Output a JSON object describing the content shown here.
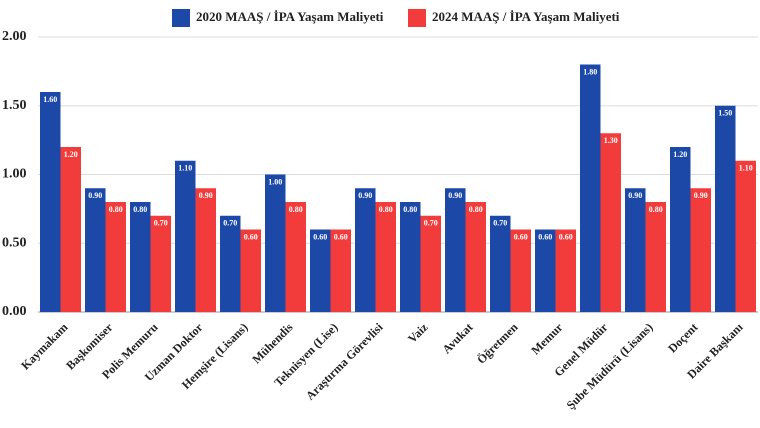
{
  "chart_data": {
    "type": "bar",
    "categories": [
      "Kaymakam",
      "Başkomiser",
      "Polis Memuru",
      "Uzman Doktor",
      "Hemşire (Lisans)",
      "Mühendis",
      "Teknisyen (Lise)",
      "Araştırma Görevlisi",
      "Vaiz",
      "Avukat",
      "Öğretmen",
      "Memur",
      "Genel Müdür",
      "Şube Müdürü (Lisans)",
      "Doçent",
      "Daire Başkanı"
    ],
    "series": [
      {
        "name": "2020 MAAŞ / İPA Yaşam Maliyeti",
        "color": "#1c48a8",
        "values": [
          1.6,
          0.9,
          0.8,
          1.1,
          0.7,
          1.0,
          0.6,
          0.9,
          0.8,
          0.9,
          0.7,
          0.6,
          1.8,
          0.9,
          1.2,
          1.5
        ],
        "value_labels": [
          "1.60",
          "0.90",
          "0.80",
          "1.10",
          "0.70",
          "1.00",
          "0.60",
          "0.90",
          "0.80",
          "0.90",
          "0.70",
          "0.60",
          "1.80",
          "0.90",
          "1.20",
          "1.50"
        ]
      },
      {
        "name": "2024 MAAŞ / İPA Yaşam Maliyeti",
        "color": "#f23b3b",
        "values": [
          1.2,
          0.8,
          0.7,
          0.9,
          0.6,
          0.8,
          0.6,
          0.8,
          0.7,
          0.8,
          0.6,
          0.6,
          1.3,
          0.8,
          0.9,
          1.1
        ],
        "value_labels": [
          "1.20",
          "0.80",
          "0.70",
          "0.90",
          "0.60",
          "0.80",
          "0.60",
          "0.80",
          "0.70",
          "0.80",
          "0.60",
          "0.60",
          "1.30",
          "0.80",
          "0.90",
          "1.10"
        ]
      }
    ],
    "ylim": [
      0,
      2
    ],
    "yticks": [
      {
        "value": 0,
        "label": "0.00"
      },
      {
        "value": 0.5,
        "label": "0.50"
      },
      {
        "value": 1,
        "label": "1.00"
      },
      {
        "value": 1.5,
        "label": "1.50"
      },
      {
        "value": 2,
        "label": "2.00"
      }
    ],
    "grid": true,
    "legend": "top"
  }
}
